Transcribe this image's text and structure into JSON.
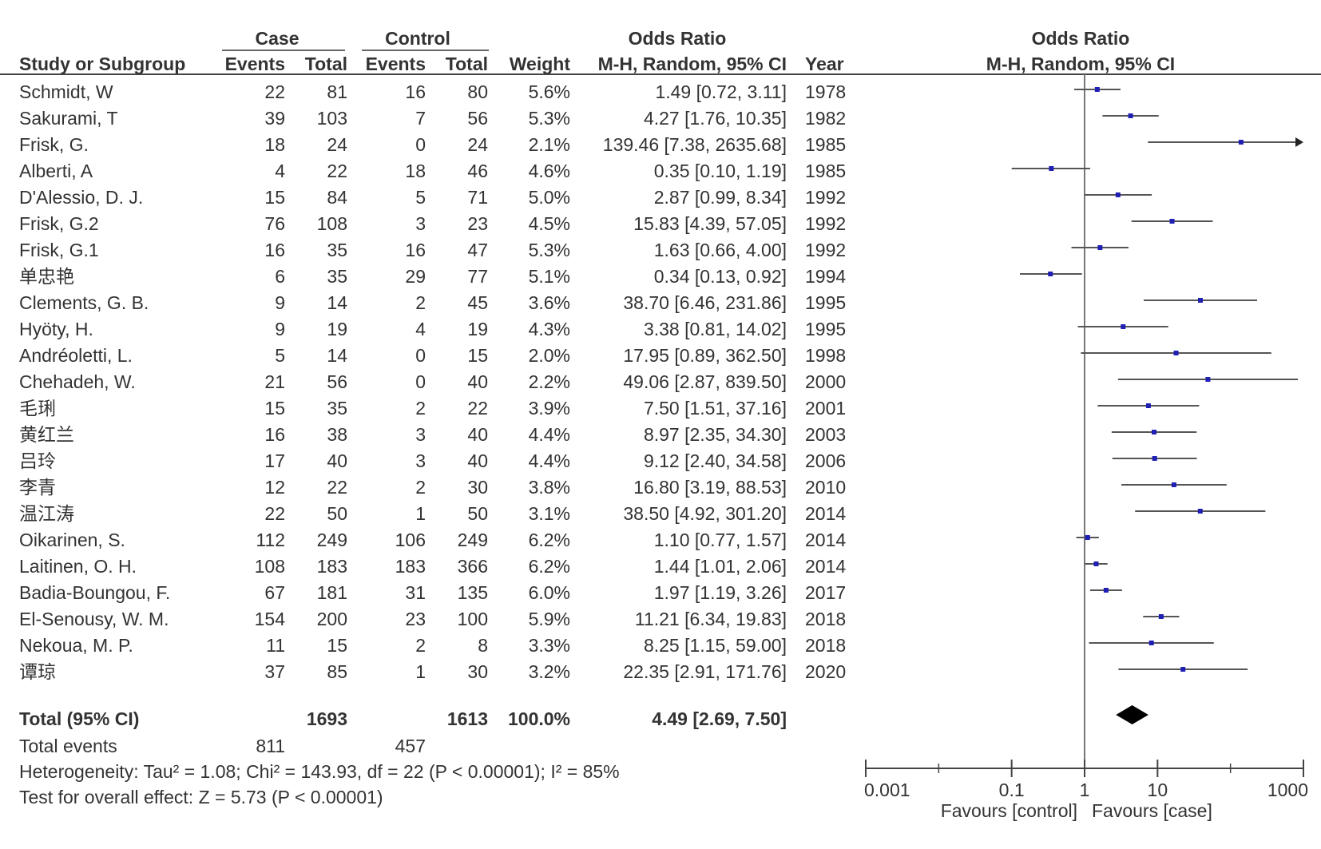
{
  "table": {
    "group_case": "Case",
    "group_control": "Control",
    "group_or": "Odds Ratio",
    "headers": {
      "study": "Study or Subgroup",
      "case_events": "Events",
      "case_total": "Total",
      "ctrl_events": "Events",
      "ctrl_total": "Total",
      "weight": "Weight",
      "or": "M-H, Random, 95% CI",
      "year": "Year"
    },
    "plot_title": "Odds Ratio",
    "plot_subtitle": "M-H, Random, 95% CI",
    "rows": [
      {
        "study": "Schmidt, W",
        "case_events": "22",
        "case_total": "81",
        "ctrl_events": "16",
        "ctrl_total": "80",
        "weight": "5.6%",
        "or_text": "1.49 [0.72, 3.11]",
        "year": "1978"
      },
      {
        "study": "Sakurami, T",
        "case_events": "39",
        "case_total": "103",
        "ctrl_events": "7",
        "ctrl_total": "56",
        "weight": "5.3%",
        "or_text": "4.27 [1.76, 10.35]",
        "year": "1982"
      },
      {
        "study": "Frisk, G.",
        "case_events": "18",
        "case_total": "24",
        "ctrl_events": "0",
        "ctrl_total": "24",
        "weight": "2.1%",
        "or_text": "139.46 [7.38, 2635.68]",
        "year": "1985"
      },
      {
        "study": "Alberti, A",
        "case_events": "4",
        "case_total": "22",
        "ctrl_events": "18",
        "ctrl_total": "46",
        "weight": "4.6%",
        "or_text": "0.35 [0.10, 1.19]",
        "year": "1985"
      },
      {
        "study": "D'Alessio, D. J.",
        "case_events": "15",
        "case_total": "84",
        "ctrl_events": "5",
        "ctrl_total": "71",
        "weight": "5.0%",
        "or_text": "2.87 [0.99, 8.34]",
        "year": "1992"
      },
      {
        "study": "Frisk, G.2",
        "case_events": "76",
        "case_total": "108",
        "ctrl_events": "3",
        "ctrl_total": "23",
        "weight": "4.5%",
        "or_text": "15.83 [4.39, 57.05]",
        "year": "1992"
      },
      {
        "study": "Frisk, G.1",
        "case_events": "16",
        "case_total": "35",
        "ctrl_events": "16",
        "ctrl_total": "47",
        "weight": "5.3%",
        "or_text": "1.63 [0.66, 4.00]",
        "year": "1992"
      },
      {
        "study": "单忠艳",
        "case_events": "6",
        "case_total": "35",
        "ctrl_events": "29",
        "ctrl_total": "77",
        "weight": "5.1%",
        "or_text": "0.34 [0.13, 0.92]",
        "year": "1994"
      },
      {
        "study": "Clements, G. B.",
        "case_events": "9",
        "case_total": "14",
        "ctrl_events": "2",
        "ctrl_total": "45",
        "weight": "3.6%",
        "or_text": "38.70 [6.46, 231.86]",
        "year": "1995"
      },
      {
        "study": "Hyöty, H.",
        "case_events": "9",
        "case_total": "19",
        "ctrl_events": "4",
        "ctrl_total": "19",
        "weight": "4.3%",
        "or_text": "3.38 [0.81, 14.02]",
        "year": "1995"
      },
      {
        "study": "Andréoletti, L.",
        "case_events": "5",
        "case_total": "14",
        "ctrl_events": "0",
        "ctrl_total": "15",
        "weight": "2.0%",
        "or_text": "17.95 [0.89, 362.50]",
        "year": "1998"
      },
      {
        "study": "Chehadeh, W.",
        "case_events": "21",
        "case_total": "56",
        "ctrl_events": "0",
        "ctrl_total": "40",
        "weight": "2.2%",
        "or_text": "49.06 [2.87, 839.50]",
        "year": "2000"
      },
      {
        "study": "毛琍",
        "case_events": "15",
        "case_total": "35",
        "ctrl_events": "2",
        "ctrl_total": "22",
        "weight": "3.9%",
        "or_text": "7.50 [1.51, 37.16]",
        "year": "2001"
      },
      {
        "study": "黄红兰",
        "case_events": "16",
        "case_total": "38",
        "ctrl_events": "3",
        "ctrl_total": "40",
        "weight": "4.4%",
        "or_text": "8.97 [2.35, 34.30]",
        "year": "2003"
      },
      {
        "study": "吕玲",
        "case_events": "17",
        "case_total": "40",
        "ctrl_events": "3",
        "ctrl_total": "40",
        "weight": "4.4%",
        "or_text": "9.12 [2.40, 34.58]",
        "year": "2006"
      },
      {
        "study": "李青",
        "case_events": "12",
        "case_total": "22",
        "ctrl_events": "2",
        "ctrl_total": "30",
        "weight": "3.8%",
        "or_text": "16.80 [3.19, 88.53]",
        "year": "2010"
      },
      {
        "study": "温江涛",
        "case_events": "22",
        "case_total": "50",
        "ctrl_events": "1",
        "ctrl_total": "50",
        "weight": "3.1%",
        "or_text": "38.50 [4.92, 301.20]",
        "year": "2014"
      },
      {
        "study": "Oikarinen, S.",
        "case_events": "112",
        "case_total": "249",
        "ctrl_events": "106",
        "ctrl_total": "249",
        "weight": "6.2%",
        "or_text": "1.10 [0.77, 1.57]",
        "year": "2014"
      },
      {
        "study": "Laitinen, O. H.",
        "case_events": "108",
        "case_total": "183",
        "ctrl_events": "183",
        "ctrl_total": "366",
        "weight": "6.2%",
        "or_text": "1.44 [1.01, 2.06]",
        "year": "2014"
      },
      {
        "study": "Badia-Boungou, F.",
        "case_events": "67",
        "case_total": "181",
        "ctrl_events": "31",
        "ctrl_total": "135",
        "weight": "6.0%",
        "or_text": "1.97 [1.19, 3.26]",
        "year": "2017"
      },
      {
        "study": "El-Senousy, W. M.",
        "case_events": "154",
        "case_total": "200",
        "ctrl_events": "23",
        "ctrl_total": "100",
        "weight": "5.9%",
        "or_text": "11.21 [6.34, 19.83]",
        "year": "2018"
      },
      {
        "study": "Nekoua, M. P.",
        "case_events": "11",
        "case_total": "15",
        "ctrl_events": "2",
        "ctrl_total": "8",
        "weight": "3.3%",
        "or_text": "8.25 [1.15, 59.00]",
        "year": "2018"
      },
      {
        "study": "谭琼",
        "case_events": "37",
        "case_total": "85",
        "ctrl_events": "1",
        "ctrl_total": "30",
        "weight": "3.2%",
        "or_text": "22.35 [2.91, 171.76]",
        "year": "2020"
      }
    ],
    "total": {
      "label": "Total (95% CI)",
      "case_total": "1693",
      "ctrl_total": "1613",
      "weight": "100.0%",
      "or_text": "4.49 [2.69, 7.50]"
    },
    "total_events": {
      "label": "Total events",
      "case_events": "811",
      "ctrl_events": "457"
    },
    "heterogeneity": "Heterogeneity: Tau² = 1.08; Chi² = 143.93, df = 22 (P < 0.00001); I² = 85%",
    "overall_effect": "Test for overall effect: Z = 5.73 (P < 0.00001)"
  },
  "chart_data": {
    "type": "forest",
    "scale": "log",
    "xlim": [
      0.001,
      1000
    ],
    "x_ticks": [
      0.001,
      0.1,
      1,
      10,
      1000
    ],
    "x_tick_labels": [
      "0.001",
      "0.1",
      "1",
      "10",
      "1000"
    ],
    "reference_line": 1,
    "left_label": "Favours [control]",
    "right_label": "Favours [case]",
    "point_color": "#1f1fb4",
    "line_color": "#555555",
    "studies": [
      {
        "or": 1.49,
        "lo": 0.72,
        "hi": 3.11
      },
      {
        "or": 4.27,
        "lo": 1.76,
        "hi": 10.35
      },
      {
        "or": 139.46,
        "lo": 7.38,
        "hi": 2635.68
      },
      {
        "or": 0.35,
        "lo": 0.1,
        "hi": 1.19
      },
      {
        "or": 2.87,
        "lo": 0.99,
        "hi": 8.34
      },
      {
        "or": 15.83,
        "lo": 4.39,
        "hi": 57.05
      },
      {
        "or": 1.63,
        "lo": 0.66,
        "hi": 4.0
      },
      {
        "or": 0.34,
        "lo": 0.13,
        "hi": 0.92
      },
      {
        "or": 38.7,
        "lo": 6.46,
        "hi": 231.86
      },
      {
        "or": 3.38,
        "lo": 0.81,
        "hi": 14.02
      },
      {
        "or": 17.95,
        "lo": 0.89,
        "hi": 362.5
      },
      {
        "or": 49.06,
        "lo": 2.87,
        "hi": 839.5
      },
      {
        "or": 7.5,
        "lo": 1.51,
        "hi": 37.16
      },
      {
        "or": 8.97,
        "lo": 2.35,
        "hi": 34.3
      },
      {
        "or": 9.12,
        "lo": 2.4,
        "hi": 34.58
      },
      {
        "or": 16.8,
        "lo": 3.19,
        "hi": 88.53
      },
      {
        "or": 38.5,
        "lo": 4.92,
        "hi": 301.2
      },
      {
        "or": 1.1,
        "lo": 0.77,
        "hi": 1.57
      },
      {
        "or": 1.44,
        "lo": 1.01,
        "hi": 2.06
      },
      {
        "or": 1.97,
        "lo": 1.19,
        "hi": 3.26
      },
      {
        "or": 11.21,
        "lo": 6.34,
        "hi": 19.83
      },
      {
        "or": 8.25,
        "lo": 1.15,
        "hi": 59.0
      },
      {
        "or": 22.35,
        "lo": 2.91,
        "hi": 171.76
      }
    ],
    "pooled": {
      "or": 4.49,
      "lo": 2.69,
      "hi": 7.5
    }
  }
}
